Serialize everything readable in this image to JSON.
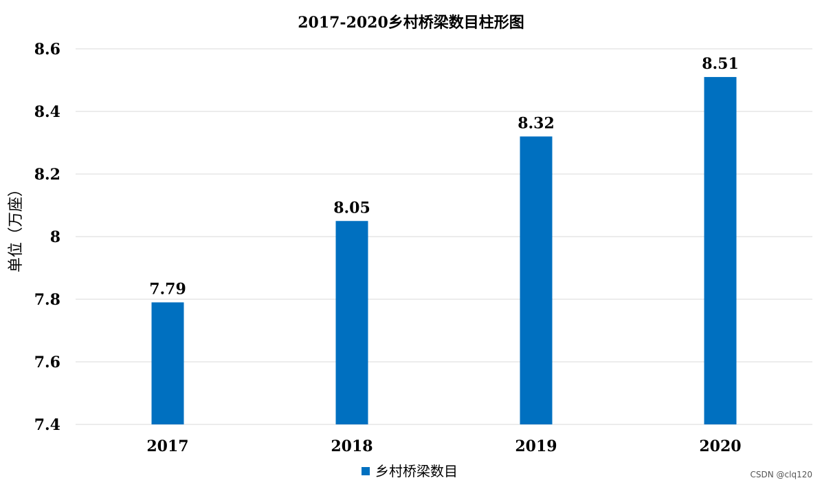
{
  "chart_data": {
    "type": "bar",
    "title": "2017-2020乡村桥梁数目柱形图",
    "xlabel": "",
    "ylabel": "单位（万座）",
    "categories": [
      "2017",
      "2018",
      "2019",
      "2020"
    ],
    "series": [
      {
        "name": "乡村桥梁数目",
        "values": [
          7.79,
          8.05,
          8.32,
          8.51
        ],
        "color": "#0070C0"
      }
    ],
    "data_labels": [
      "7.79",
      "8.05",
      "8.32",
      "8.51"
    ],
    "ylim": [
      7.4,
      8.6
    ],
    "yticks": [
      7.4,
      7.6,
      7.8,
      8.0,
      8.2,
      8.4,
      8.6
    ],
    "ytick_labels": [
      "7.4",
      "7.6",
      "7.8",
      "8",
      "8.2",
      "8.4",
      "8.6"
    ],
    "grid": true,
    "grid_color": "#D9D9D9",
    "legend_position": "bottom"
  },
  "watermark": "CSDN @clq120"
}
